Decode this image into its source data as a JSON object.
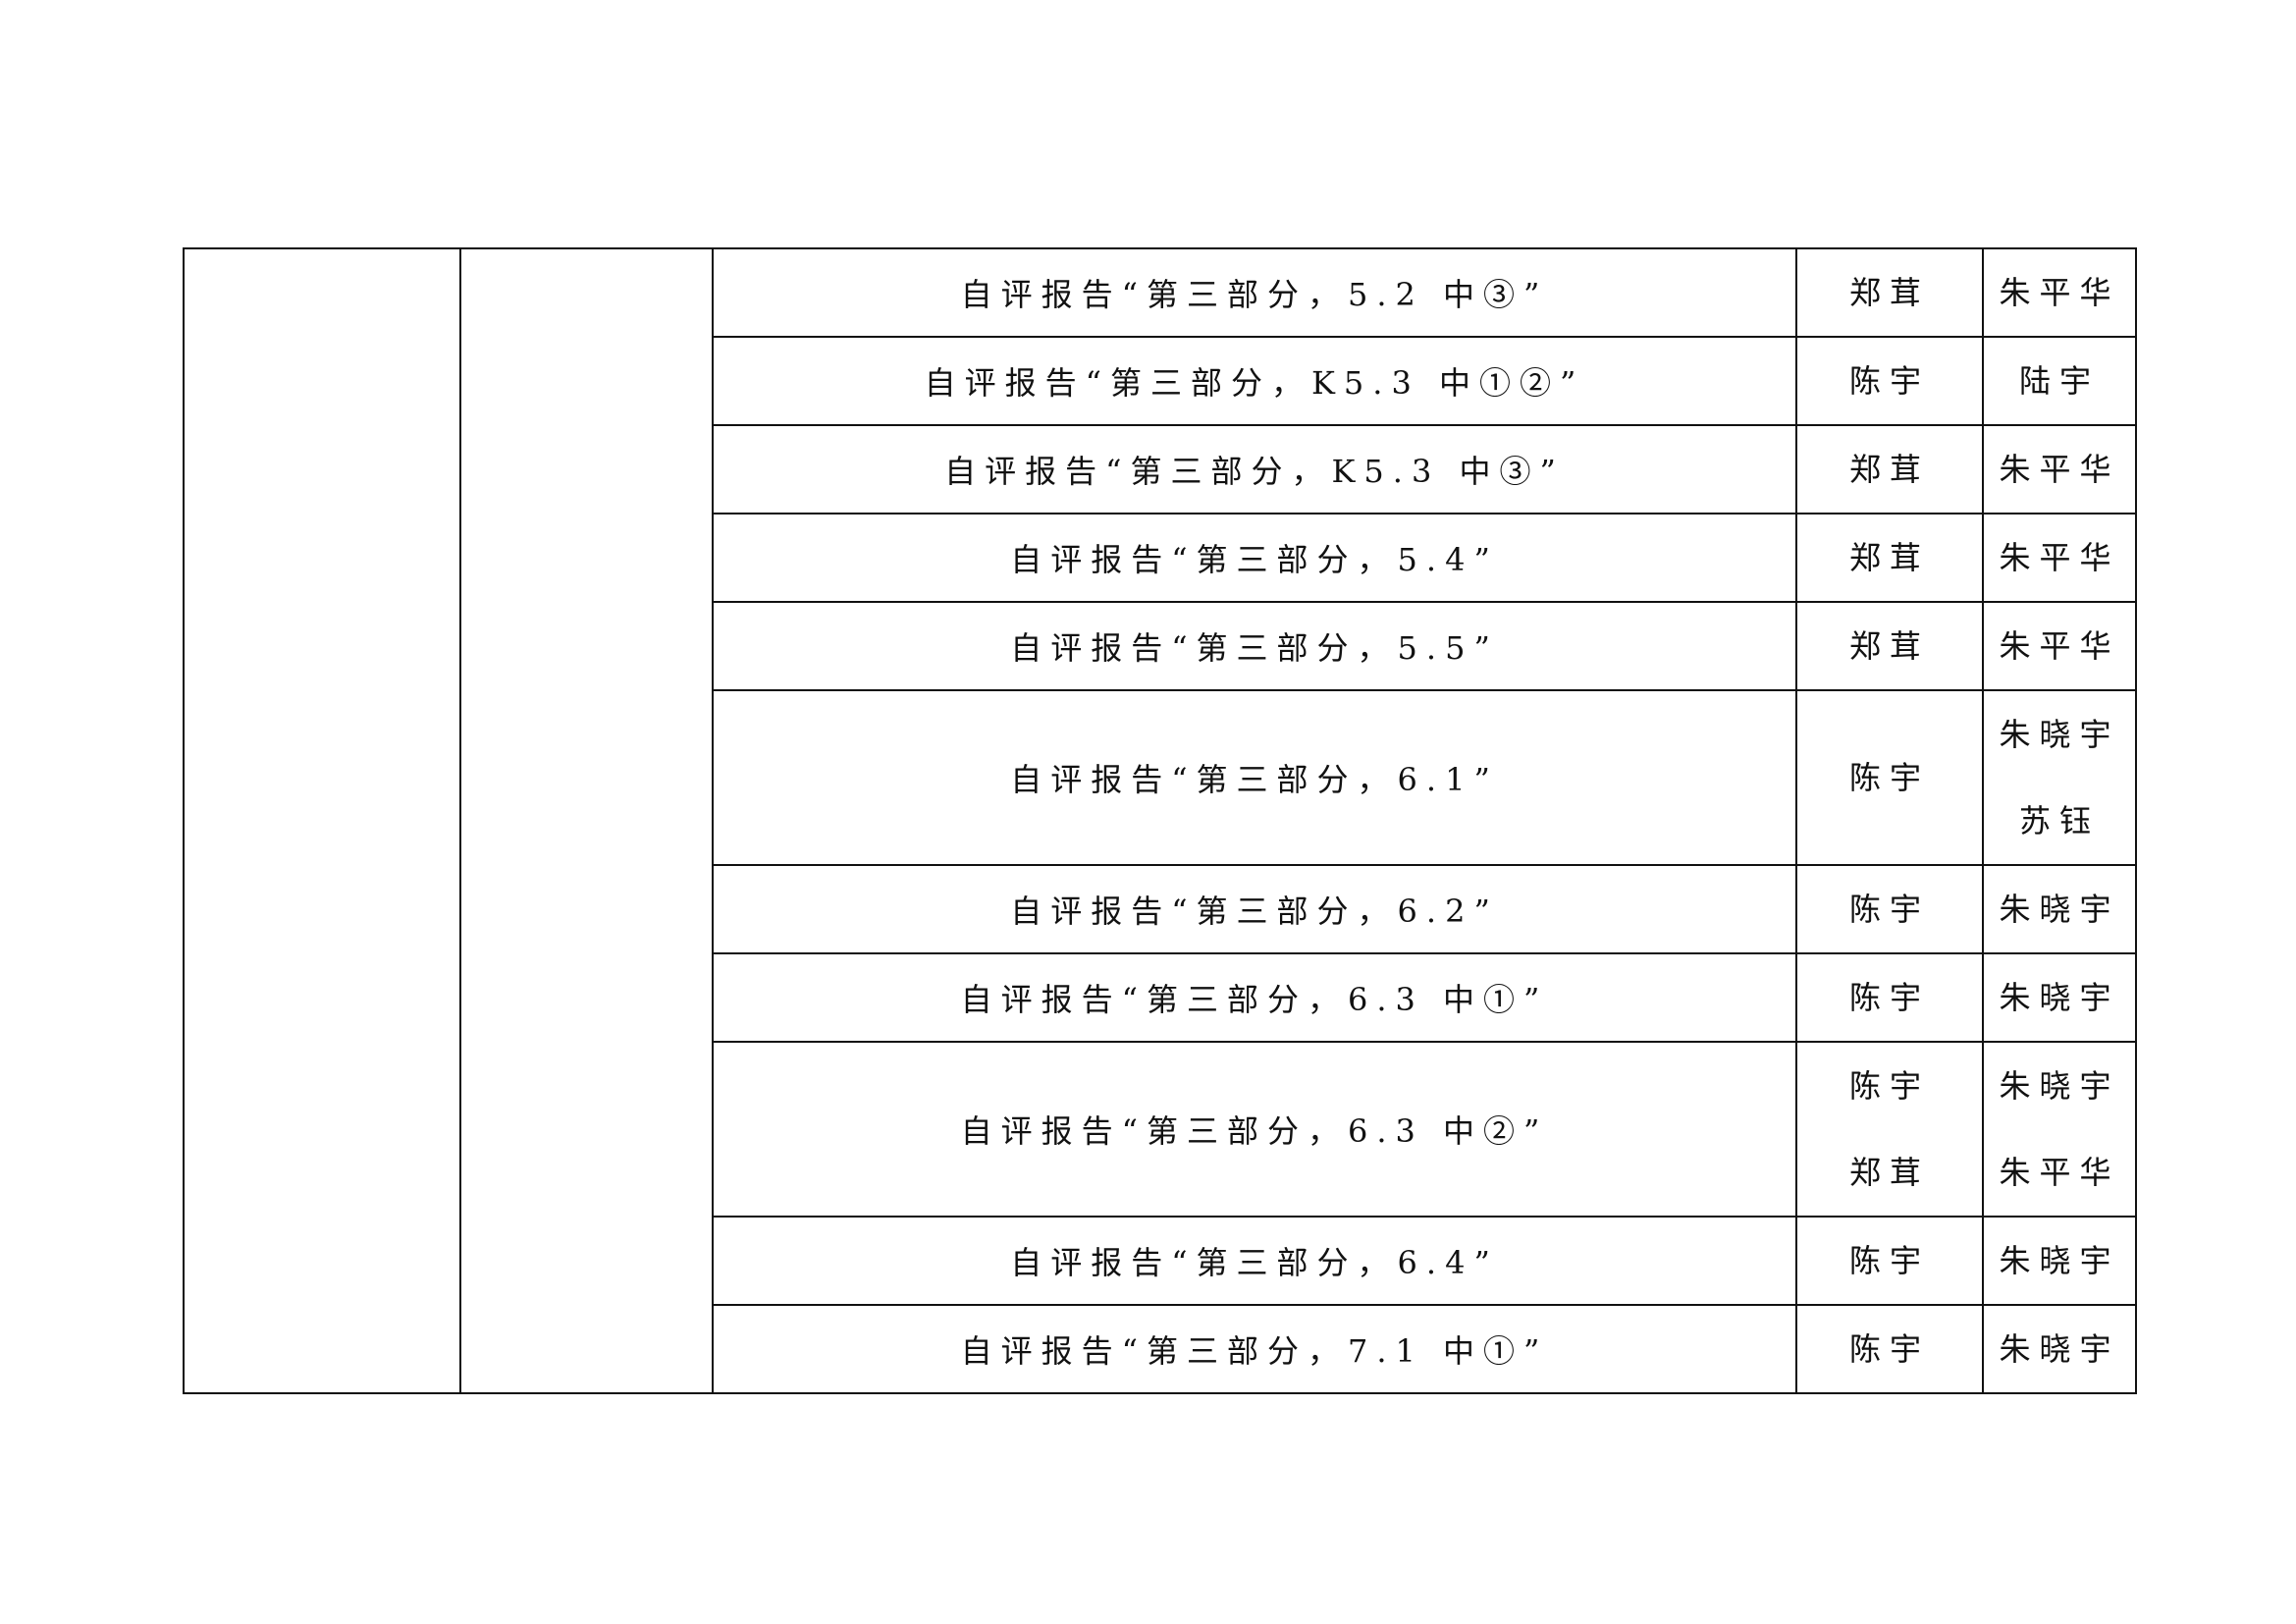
{
  "rows": [
    {
      "item": "自评报告“第三部分，5.2 中③”",
      "responsible": [
        "郑茸"
      ],
      "reviewer": [
        "朱平华"
      ]
    },
    {
      "item": "自评报告“第三部分，K5.3 中①②”",
      "responsible": [
        "陈宇"
      ],
      "reviewer": [
        "陆宇"
      ]
    },
    {
      "item": "自评报告“第三部分，K5.3 中③”",
      "responsible": [
        "郑茸"
      ],
      "reviewer": [
        "朱平华"
      ]
    },
    {
      "item": "自评报告“第三部分，5.4”",
      "responsible": [
        "郑茸"
      ],
      "reviewer": [
        "朱平华"
      ]
    },
    {
      "item": "自评报告“第三部分，5.5”",
      "responsible": [
        "郑茸"
      ],
      "reviewer": [
        "朱平华"
      ]
    },
    {
      "item": "自评报告“第三部分，6.1”",
      "responsible": [
        "陈宇"
      ],
      "reviewer": [
        "朱晓宇",
        "苏钰"
      ]
    },
    {
      "item": "自评报告“第三部分，6.2”",
      "responsible": [
        "陈宇"
      ],
      "reviewer": [
        "朱晓宇"
      ]
    },
    {
      "item": "自评报告“第三部分，6.3 中①”",
      "responsible": [
        "陈宇"
      ],
      "reviewer": [
        "朱晓宇"
      ]
    },
    {
      "item": "自评报告“第三部分，6.3 中②”",
      "responsible": [
        "陈宇",
        "郑茸"
      ],
      "reviewer": [
        "朱晓宇",
        "朱平华"
      ]
    },
    {
      "item": "自评报告“第三部分，6.4”",
      "responsible": [
        "陈宇"
      ],
      "reviewer": [
        "朱晓宇"
      ]
    },
    {
      "item": "自评报告“第三部分，7.1 中①”",
      "responsible": [
        "陈宇"
      ],
      "reviewer": [
        "朱晓宇"
      ]
    }
  ]
}
